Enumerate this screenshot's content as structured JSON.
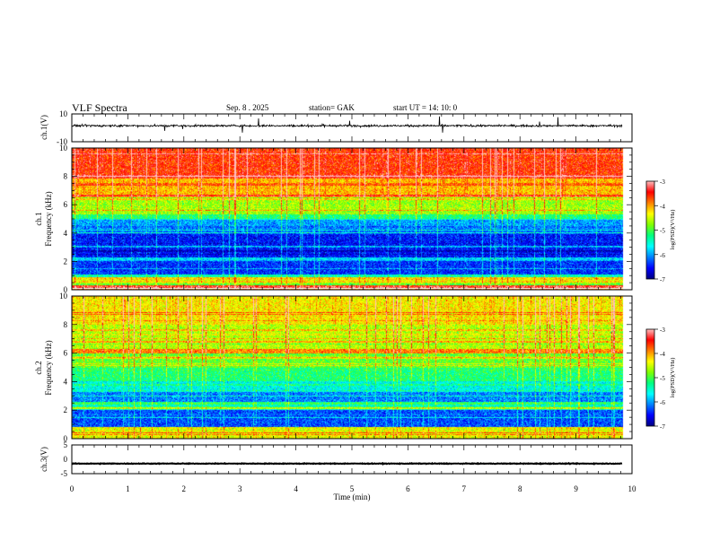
{
  "header": {
    "title": "VLF  Spectra",
    "date": "Sep. 8  . 2025",
    "station": "station= GAK",
    "start": "start  UT  =    14: 10: 0"
  },
  "chart_data": {
    "type": "heatmap",
    "x": {
      "label": "Time  (min)",
      "range": [
        0,
        10
      ],
      "ticks": [
        "0",
        "1",
        "2",
        "3",
        "4",
        "5",
        "6",
        "7",
        "8",
        "9",
        "10"
      ],
      "data_end_min": 9.83
    },
    "panels": [
      {
        "id": "ch1-waveform",
        "type": "line",
        "ylabel": "ch.1(V)",
        "ylim": [
          -10,
          10
        ],
        "yticks": [
          "10",
          "-10"
        ],
        "baseline_v": 1.5,
        "noise_amplitude_v": 2
      },
      {
        "id": "ch1-spectrogram",
        "type": "heatmap",
        "ylabel": "ch.1\nFrequency  (kHz)",
        "ylim": [
          0,
          10
        ],
        "yticks": [
          "0",
          "2",
          "4",
          "6",
          "8",
          "10"
        ],
        "gap_khz": [
          0.05,
          0.1
        ],
        "bands_khz": [
          {
            "from": 0.0,
            "to": 0.3,
            "level": -3.6
          },
          {
            "from": 0.3,
            "to": 0.5,
            "level": -5.0
          },
          {
            "from": 0.5,
            "to": 0.9,
            "level": -4.2
          },
          {
            "from": 0.9,
            "to": 1.1,
            "level": -5.4
          },
          {
            "from": 1.1,
            "to": 2.0,
            "level": -6.4
          },
          {
            "from": 2.0,
            "to": 2.3,
            "level": -5.8
          },
          {
            "from": 2.3,
            "to": 4.0,
            "level": -6.5
          },
          {
            "from": 4.0,
            "to": 4.5,
            "level": -6.2
          },
          {
            "from": 4.5,
            "to": 5.0,
            "level": -6.0
          },
          {
            "from": 5.0,
            "to": 5.3,
            "level": -5.2
          },
          {
            "from": 5.3,
            "to": 6.5,
            "level": -4.7
          },
          {
            "from": 6.5,
            "to": 8.0,
            "level": -4.1
          },
          {
            "from": 8.0,
            "to": 10.0,
            "level": -3.6
          }
        ],
        "colorbar": {
          "label": "log(PSD)(V²/Hz)",
          "range": [
            -7,
            -3
          ],
          "ticks": [
            "-3",
            "-4",
            "-5",
            "-6",
            "-7"
          ]
        }
      },
      {
        "id": "ch2-spectrogram",
        "type": "heatmap",
        "ylabel": "ch.2\nFrequency  (kHz)",
        "ylim": [
          0,
          10
        ],
        "yticks": [
          "0",
          "2",
          "4",
          "6",
          "8",
          "10"
        ],
        "bands_khz": [
          {
            "from": 0.0,
            "to": 0.8,
            "level": -4.4
          },
          {
            "from": 0.8,
            "to": 2.0,
            "level": -6.3
          },
          {
            "from": 2.0,
            "to": 2.6,
            "level": -5.5
          },
          {
            "from": 2.6,
            "to": 3.3,
            "level": -6.1
          },
          {
            "from": 3.3,
            "to": 4.0,
            "level": -5.6
          },
          {
            "from": 4.0,
            "to": 5.0,
            "level": -5.2
          },
          {
            "from": 5.0,
            "to": 6.0,
            "level": -4.9
          },
          {
            "from": 6.0,
            "to": 6.3,
            "level": -3.9
          },
          {
            "from": 6.3,
            "to": 8.0,
            "level": -4.6
          },
          {
            "from": 8.0,
            "to": 10.0,
            "level": -4.3
          }
        ],
        "colorbar": {
          "label": "log(PSD)(V²/Hz)",
          "range": [
            -7,
            -3
          ],
          "ticks": [
            "-3",
            "-4",
            "-5",
            "-6",
            "-7"
          ]
        }
      },
      {
        "id": "ch3-waveform",
        "type": "line",
        "ylabel": "ch.3(V)",
        "ylim": [
          -5,
          5
        ],
        "yticks": [
          "5",
          "0",
          "-5"
        ],
        "baseline_v": -1.5,
        "noise_amplitude_v": 0.3
      }
    ],
    "colormap": [
      "#000080",
      "#0000ff",
      "#0080ff",
      "#00ffff",
      "#00ff80",
      "#80ff00",
      "#ffff00",
      "#ff8000",
      "#ff0000",
      "#ffc0c0"
    ]
  }
}
